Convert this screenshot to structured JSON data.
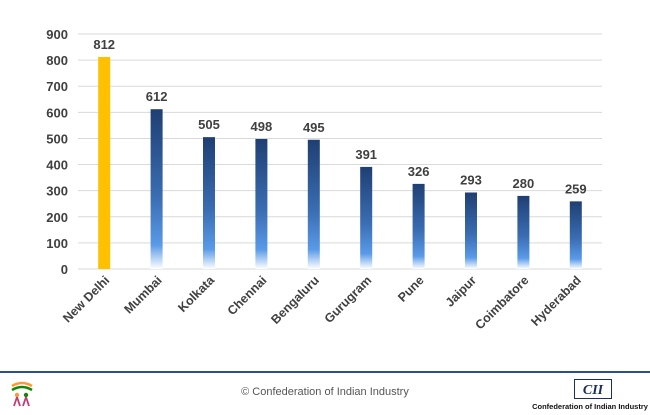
{
  "chart_data": {
    "type": "bar",
    "title": "",
    "xlabel": "",
    "ylabel": "",
    "categories": [
      "New Delhi",
      "Mumbai",
      "Kolkata",
      "Chennai",
      "Bengaluru",
      "Gurugram",
      "Pune",
      "Jaipur",
      "Coimbatore",
      "Hyderabad"
    ],
    "values": [
      812,
      612,
      505,
      498,
      495,
      391,
      326,
      293,
      280,
      259
    ],
    "ylim": [
      0,
      900
    ],
    "yticks": [
      0,
      100,
      200,
      300,
      400,
      500,
      600,
      700,
      800,
      900
    ],
    "grid": true,
    "highlight_index": 0,
    "colors": {
      "highlight": "#ffc000",
      "bar_top": "#1f3f73",
      "bar_mid": "#4a8ee0",
      "bar_bottom": "#ffffff",
      "grid": "#d9d9d9",
      "axis_text": "#404040"
    }
  },
  "footer": {
    "copyright": "© Confederation of Indian Industry",
    "org_name": "Confederation of Indian Industry",
    "org_logo_text": "CII",
    "rule_color": "#2b4f8a"
  }
}
